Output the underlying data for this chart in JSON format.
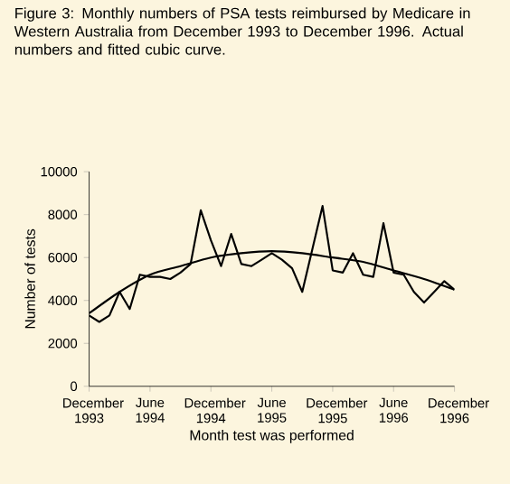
{
  "chart_data": {
    "type": "line",
    "title": "Figure 3: Monthly numbers of PSA tests reimbursed by Medicare in Western Australia from December 1993 to December 1996. Actual numbers and fitted cubic curve.",
    "xlabel": "Month test was performed",
    "ylabel": "Number of tests",
    "x": [
      "1993-12",
      "1994-01",
      "1994-02",
      "1994-03",
      "1994-04",
      "1994-05",
      "1994-06",
      "1994-07",
      "1994-08",
      "1994-09",
      "1994-10",
      "1994-11",
      "1994-12",
      "1995-01",
      "1995-02",
      "1995-03",
      "1995-04",
      "1995-05",
      "1995-06",
      "1995-07",
      "1995-08",
      "1995-09",
      "1995-10",
      "1995-11",
      "1995-12",
      "1996-01",
      "1996-02",
      "1996-03",
      "1996-04",
      "1996-05",
      "1996-06",
      "1996-07",
      "1996-08",
      "1996-09",
      "1996-10",
      "1996-11",
      "1996-12"
    ],
    "series": [
      {
        "color": "#000000",
        "values": [
          3300,
          3000,
          3300,
          4400,
          3600,
          5200,
          5100,
          5100,
          5000,
          5300,
          5700,
          8200,
          6800,
          5600,
          7100,
          5700,
          5600,
          5900,
          6200,
          5900,
          5500,
          4400,
          6400,
          8400,
          5400,
          5300,
          6200,
          5200,
          5100,
          7600,
          5300,
          5200,
          4400,
          3900,
          4400,
          4900,
          4500
        ]
      },
      {
        "color": "#000000",
        "x": [
          "1993-12",
          "1994-03",
          "1994-06",
          "1994-09",
          "1994-12",
          "1995-03",
          "1995-06",
          "1995-09",
          "1995-12",
          "1996-03",
          "1996-06",
          "1996-09",
          "1996-12"
        ],
        "values": [
          3400,
          4400,
          5200,
          5600,
          6000,
          6200,
          6300,
          6200,
          6000,
          5800,
          5400,
          5000,
          4500
        ]
      }
    ],
    "xlim": [
      "1993-12",
      "1996-12"
    ],
    "xticks": [
      {
        "value": "1993-12",
        "label": "December 1993"
      },
      {
        "value": "1994-06",
        "label": "June 1994"
      },
      {
        "value": "1994-12",
        "label": "December 1994"
      },
      {
        "value": "1995-06",
        "label": "June 1995"
      },
      {
        "value": "1995-12",
        "label": "December 1995"
      },
      {
        "value": "1996-06",
        "label": "June 1996"
      },
      {
        "value": "1996-12",
        "label": "December 1996"
      }
    ],
    "ylim": [
      0,
      10000
    ],
    "yticks": [
      0,
      2000,
      4000,
      6000,
      8000,
      10000
    ],
    "marker": "none",
    "line_style": "solid"
  }
}
